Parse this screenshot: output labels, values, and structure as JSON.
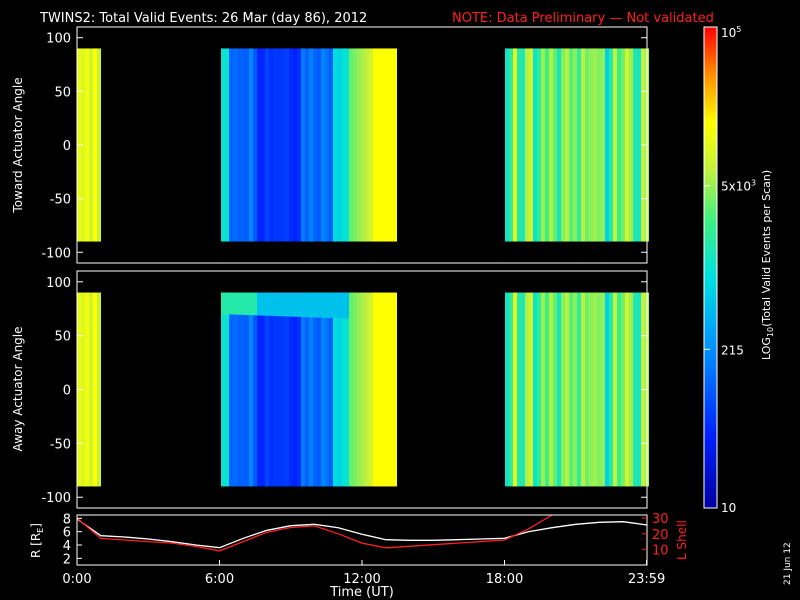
{
  "header": {
    "title": "TWINS2: Total Valid Events: 26 Mar (day  86), 2012",
    "note": "NOTE: Data Preliminary — Not validated",
    "note_color": "#ff2020"
  },
  "side_stamp": "21 Jun 12",
  "chart_data": [
    {
      "type": "heatmap",
      "ylabel": "Toward Actuator Angle",
      "ylim": [
        -110,
        110
      ],
      "yticks": [
        100,
        50,
        0,
        -50,
        -100
      ],
      "xlim_hours": [
        0,
        24
      ],
      "data_angle_range": [
        -90,
        90
      ],
      "segments": [
        {
          "start": "0:00",
          "end": "0:58",
          "level": "high (~5x10^3)"
        },
        {
          "start": "6:00",
          "end": "13:23",
          "level": "low (~100-500), rising to high after ~11:30"
        },
        {
          "start": "18:00",
          "end": "23:59",
          "level": "mixed (~500-5x10^3)"
        }
      ]
    },
    {
      "type": "heatmap",
      "ylabel": "Away Actuator Angle",
      "ylim": [
        -110,
        110
      ],
      "yticks": [
        100,
        50,
        0,
        -50,
        -100
      ],
      "xlim_hours": [
        0,
        24
      ],
      "data_angle_range": [
        -90,
        90
      ],
      "segments": [
        {
          "start": "0:00",
          "end": "0:58",
          "level": "high (~5x10^3)"
        },
        {
          "start": "6:00",
          "end": "13:23",
          "level": "low (~100-500), band near 80° elevated, rising to high after ~11:30"
        },
        {
          "start": "18:00",
          "end": "23:59",
          "level": "mixed (~500-5x10^3)"
        }
      ]
    },
    {
      "type": "line",
      "xlabel": "Time (UT)",
      "xticks": [
        "0:00",
        "6:00",
        "12:00",
        "18:00",
        "23:59"
      ],
      "y_left_label": "R [R",
      "y_left_sub": "E",
      "y_left_close": "]",
      "y_left_ticks": [
        8,
        6,
        4,
        2
      ],
      "ylim_left": [
        1,
        8.5
      ],
      "y_right_label": "L Shell",
      "y_right_ticks": [
        30,
        20,
        10
      ],
      "ylim_right": [
        0,
        32
      ],
      "x": [
        0,
        1,
        2,
        3,
        4,
        5,
        6,
        7,
        8,
        9,
        10,
        11,
        12,
        13,
        14,
        15,
        16,
        17,
        18,
        19,
        20,
        21,
        22,
        23,
        24
      ],
      "series": [
        {
          "values": [
            7.9,
            5.4,
            5.2,
            4.9,
            4.5,
            4.0,
            3.6,
            5.0,
            6.2,
            6.9,
            7.1,
            6.6,
            5.6,
            4.8,
            4.7,
            4.7,
            4.8,
            4.9,
            5.0,
            6.0,
            6.6,
            7.1,
            7.4,
            7.5,
            7.0
          ],
          "color": "#ffffff",
          "axis": "left"
        },
        {
          "values": [
            30,
            17,
            16,
            15,
            14,
            12,
            9,
            15,
            21,
            24,
            25,
            20,
            14,
            11,
            12,
            13,
            14,
            15,
            16,
            23,
            32,
            null,
            null,
            null,
            null
          ],
          "color": "#ff2020",
          "axis": "right"
        }
      ]
    }
  ],
  "colorbar": {
    "label_main": "LOG",
    "label_sub": "10",
    "label_rest": "(Total Valid Events per Scan)",
    "ticks": [
      {
        "label": "10",
        "frac": 0.0
      },
      {
        "label": "215",
        "frac": 0.33
      },
      {
        "label": "5x10",
        "sup": "3",
        "frac": 0.67
      },
      {
        "label": "10",
        "sup": "5",
        "frac": 1.0
      }
    ]
  }
}
